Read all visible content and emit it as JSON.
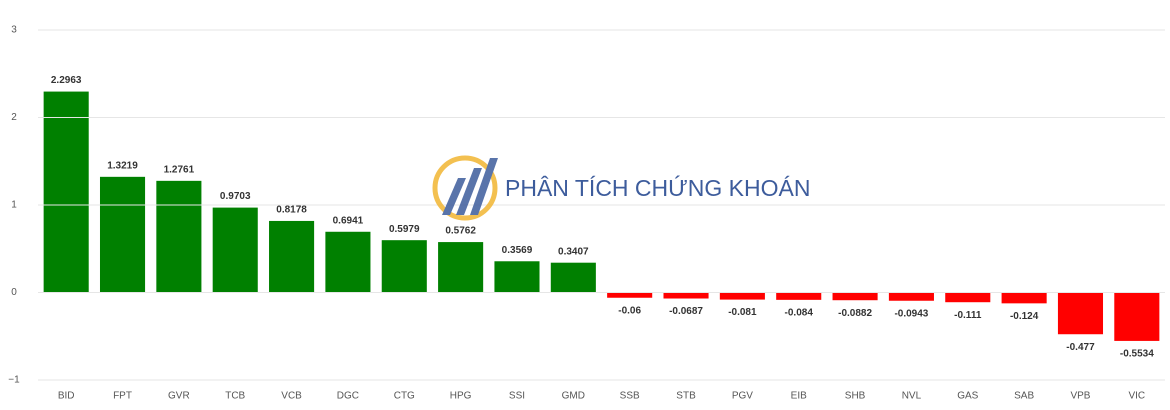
{
  "chart_data": {
    "type": "bar",
    "watermark": "PHÂN TÍCH CHỨNG KHOÁN",
    "categories": [
      "BID",
      "FPT",
      "GVR",
      "TCB",
      "VCB",
      "DGC",
      "CTG",
      "HPG",
      "SSI",
      "GMD",
      "SSB",
      "STB",
      "PGV",
      "EIB",
      "SHB",
      "NVL",
      "GAS",
      "SAB",
      "VPB",
      "VIC"
    ],
    "values": [
      2.2963,
      1.3219,
      1.2761,
      0.9703,
      0.8178,
      0.6941,
      0.5979,
      0.5762,
      0.3569,
      0.3407,
      -0.06,
      -0.0687,
      -0.081,
      -0.084,
      -0.0882,
      -0.0943,
      -0.111,
      -0.124,
      -0.477,
      -0.5534
    ],
    "positive_color": "#008000",
    "negative_color": "#ff0000",
    "ylim": [
      -1,
      3
    ],
    "yticks": [
      {
        "value": -1,
        "label": "−1"
      },
      0,
      1,
      2,
      3
    ],
    "grid": true
  }
}
